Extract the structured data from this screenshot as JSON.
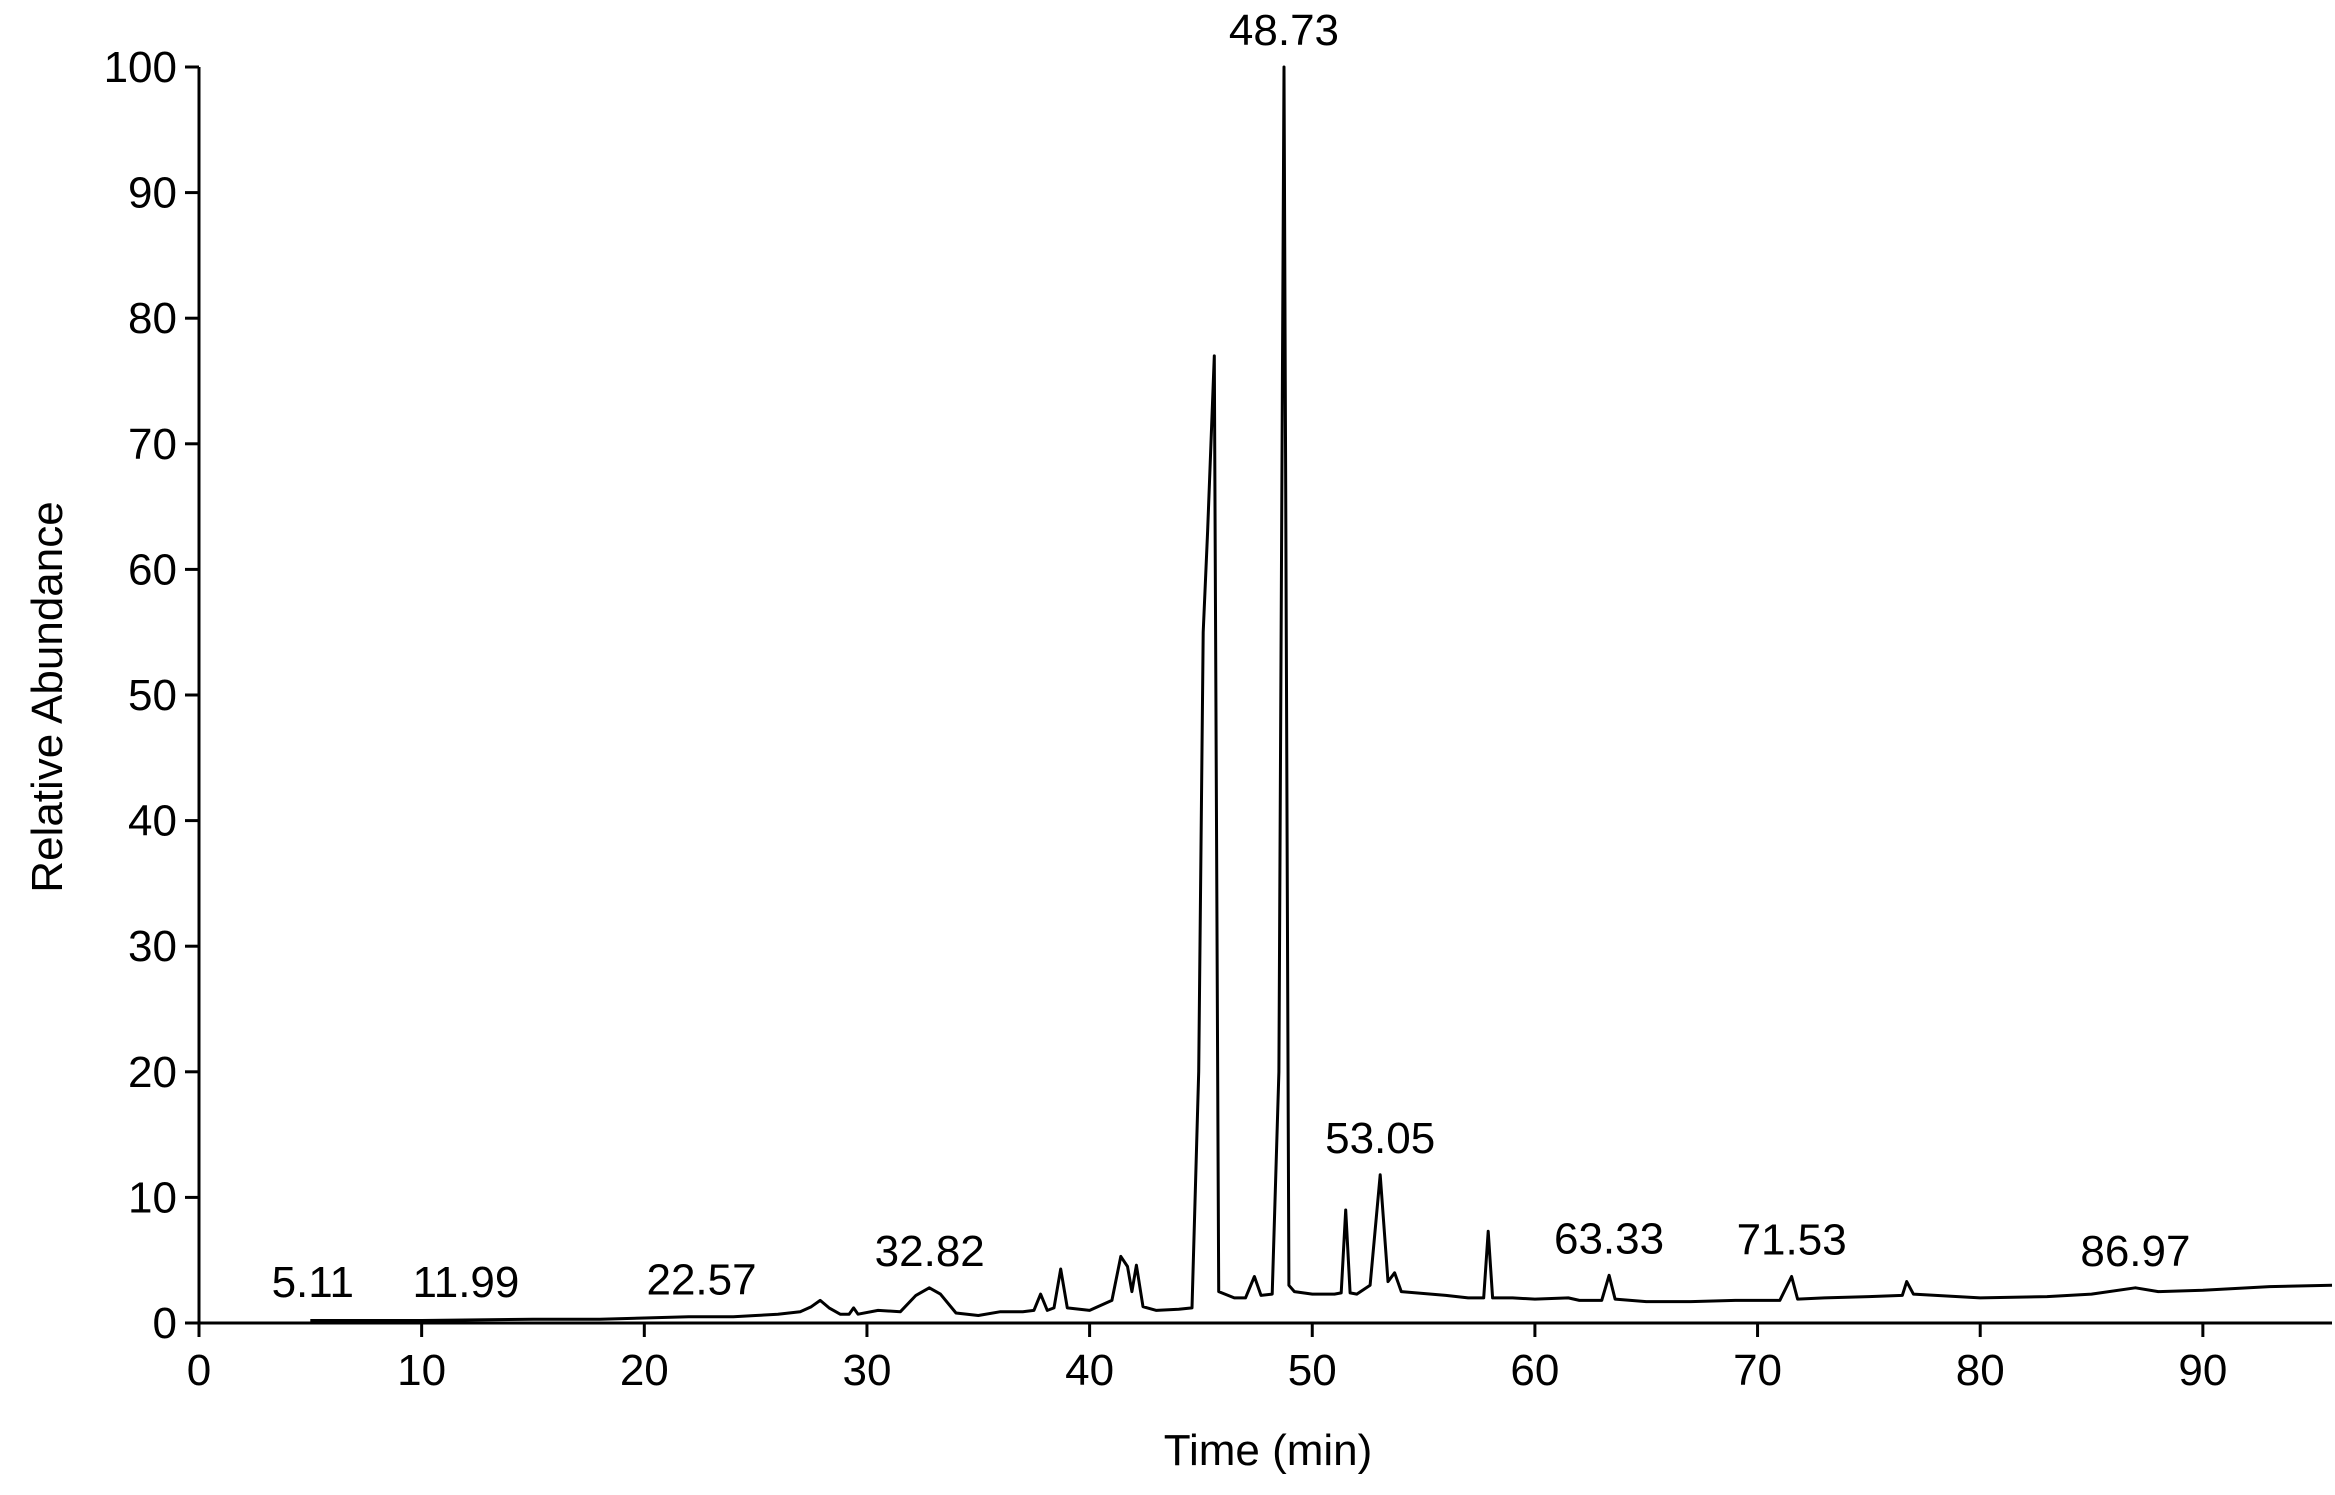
{
  "chart_data": {
    "type": "line",
    "xlabel": "Time (min)",
    "ylabel": "Relative Abundance",
    "xlim": [
      0,
      95.8
    ],
    "ylim": [
      0,
      100
    ],
    "xticks": [
      0,
      10,
      20,
      30,
      40,
      50,
      60,
      70,
      80,
      90
    ],
    "yticks": [
      0,
      10,
      20,
      30,
      40,
      50,
      60,
      70,
      80,
      90,
      100
    ],
    "color": "#000000",
    "x": [
      5,
      10,
      15,
      18,
      20,
      22,
      24,
      25,
      26,
      27,
      27.5,
      27.9,
      28.3,
      28.8,
      29.2,
      29.4,
      29.6,
      30.5,
      31.5,
      32.2,
      32.8,
      33.3,
      34,
      35,
      36,
      37,
      37.5,
      37.8,
      38.1,
      38.4,
      38.7,
      39,
      40,
      41,
      41.4,
      41.7,
      41.9,
      42.1,
      42.4,
      43,
      44,
      44.6,
      44.9,
      45.1,
      45.3,
      45.6,
      45.8,
      46.5,
      47,
      47.4,
      47.7,
      48.2,
      48.5,
      48.73,
      48.95,
      49.2,
      50,
      51,
      51.3,
      51.5,
      51.7,
      52,
      52.6,
      53.05,
      53.4,
      53.7,
      54,
      56,
      57,
      57.7,
      57.9,
      58.1,
      59,
      60,
      61.5,
      62,
      63,
      63.33,
      63.6,
      65,
      67,
      69,
      71,
      71.53,
      71.8,
      73,
      75,
      76.5,
      76.7,
      77,
      80,
      83,
      85,
      86.97,
      88,
      90,
      93,
      95.8
    ],
    "values": [
      0.2,
      0.2,
      0.3,
      0.3,
      0.4,
      0.5,
      0.5,
      0.6,
      0.7,
      0.9,
      1.3,
      1.8,
      1.2,
      0.7,
      0.7,
      1.2,
      0.7,
      1.0,
      0.9,
      2.2,
      2.8,
      2.3,
      0.8,
      0.6,
      0.9,
      0.9,
      1.0,
      2.3,
      1.0,
      1.2,
      4.3,
      1.2,
      1.0,
      1.8,
      5.3,
      4.5,
      2.5,
      4.6,
      1.3,
      1.0,
      1.1,
      1.2,
      20,
      55,
      63,
      77,
      2.5,
      2,
      2,
      3.7,
      2.2,
      2.3,
      20,
      100,
      3,
      2.5,
      2.3,
      2.3,
      2.4,
      9,
      2.4,
      2.3,
      3,
      11.8,
      3.3,
      4,
      2.5,
      2.2,
      2.0,
      2,
      7.3,
      2,
      2,
      1.9,
      2,
      1.8,
      1.8,
      3.8,
      1.9,
      1.7,
      1.7,
      1.8,
      1.8,
      3.7,
      1.9,
      2,
      2.1,
      2.2,
      3.3,
      2.3,
      2.0,
      2.1,
      2.3,
      2.8,
      2.5,
      2.6,
      2.9,
      3.0
    ],
    "annotations": [
      {
        "x": 5.11,
        "y": 0.3
      },
      {
        "x": 11.99,
        "y": 0.3
      },
      {
        "x": 22.57,
        "y": 0.5
      },
      {
        "x": 32.82,
        "y": 2.8
      },
      {
        "x": 48.73,
        "y": 100
      },
      {
        "x": 53.05,
        "y": 11.8
      },
      {
        "x": 63.33,
        "y": 3.8
      },
      {
        "x": 71.53,
        "y": 3.7
      },
      {
        "x": 86.97,
        "y": 2.8
      }
    ]
  }
}
